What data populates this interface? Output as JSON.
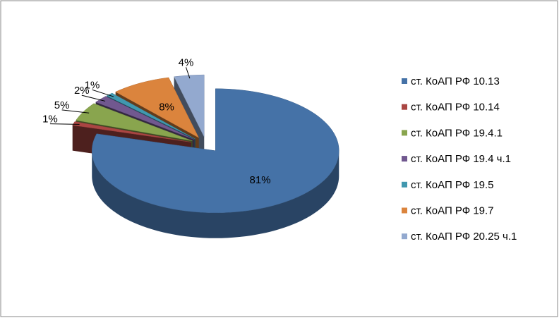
{
  "chart_data": {
    "type": "pie3d",
    "categories": [
      "ст. КоАП РФ 10.13",
      "ст. КоАП РФ 10.14",
      "ст. КоАП РФ 19.4.1",
      "ст. КоАП РФ 19.4 ч.1",
      "ст. КоАП РФ 19.5",
      "ст. КоАП РФ 19.7",
      "ст. КоАП РФ 20.25 ч.1"
    ],
    "values": [
      81,
      1,
      5,
      2,
      1,
      8,
      4
    ],
    "value_labels": [
      "81%",
      "1%",
      "5%",
      "2%",
      "1%",
      "8%",
      "4%"
    ],
    "colors": [
      "#4572a7",
      "#aa4643",
      "#89a54e",
      "#71588f",
      "#4198af",
      "#db843d",
      "#93a9cf"
    ],
    "legend": "right"
  }
}
